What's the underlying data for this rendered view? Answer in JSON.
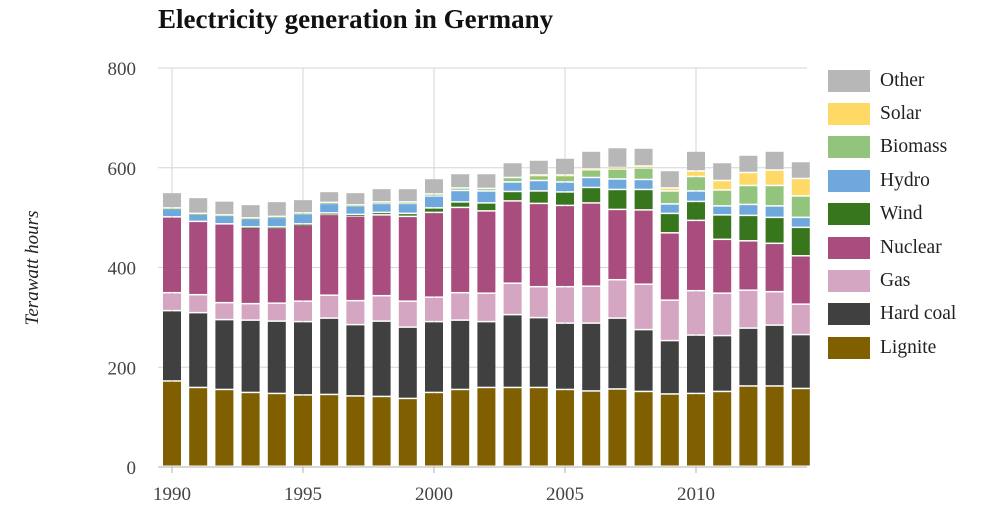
{
  "chart_data": {
    "type": "bar",
    "stacked": true,
    "title": "Electricity generation in Germany",
    "ylabel": "Terawatt hours",
    "ylim": [
      0,
      800
    ],
    "yticks": [
      0,
      200,
      400,
      600,
      800
    ],
    "xticks": [
      1990,
      1995,
      2000,
      2005,
      2010
    ],
    "grid": "vertical lines at labelled years, horizontal at y ticks",
    "legend_position": "right",
    "categories": [
      1990,
      1991,
      1992,
      1993,
      1994,
      1995,
      1996,
      1997,
      1998,
      1999,
      2000,
      2001,
      2002,
      2003,
      2004,
      2005,
      2006,
      2007,
      2008,
      2009,
      2010,
      2011,
      2012,
      2013,
      2014
    ],
    "series": [
      {
        "name": "Lignite",
        "color": "#7f5f00",
        "values": [
          171,
          158,
          154,
          148,
          146,
          143,
          144,
          141,
          140,
          136,
          148,
          154,
          158,
          158,
          158,
          154,
          151,
          155,
          150,
          145,
          146,
          150,
          161,
          161,
          156
        ]
      },
      {
        "name": "Hard coal",
        "color": "#404040",
        "values": [
          141,
          150,
          140,
          145,
          145,
          147,
          153,
          143,
          151,
          143,
          142,
          139,
          132,
          146,
          140,
          133,
          136,
          142,
          124,
          107,
          117,
          112,
          116,
          122,
          108
        ]
      },
      {
        "name": "Gas",
        "color": "#d5a6c1",
        "values": [
          36,
          36,
          34,
          33,
          36,
          41,
          46,
          48,
          51,
          52,
          49,
          55,
          57,
          63,
          62,
          73,
          74,
          77,
          91,
          81,
          89,
          85,
          76,
          67,
          61
        ]
      },
      {
        "name": "Nuclear",
        "color": "#a84d7e",
        "values": [
          152,
          147,
          158,
          153,
          151,
          153,
          162,
          170,
          162,
          170,
          170,
          171,
          165,
          165,
          167,
          163,
          167,
          141,
          149,
          135,
          141,
          108,
          99,
          97,
          97
        ]
      },
      {
        "name": "Wind",
        "color": "#38761d",
        "values": [
          0,
          0,
          0,
          1,
          2,
          2,
          3,
          3,
          5,
          6,
          9,
          11,
          16,
          19,
          25,
          27,
          31,
          40,
          41,
          39,
          38,
          49,
          51,
          52,
          57
        ]
      },
      {
        "name": "Hydro",
        "color": "#6fa8dc",
        "values": [
          17,
          15,
          17,
          17,
          19,
          20,
          19,
          17,
          18,
          20,
          24,
          23,
          24,
          19,
          21,
          20,
          20,
          21,
          20,
          19,
          21,
          18,
          22,
          23,
          20
        ]
      },
      {
        "name": "Biomass",
        "color": "#93c47d",
        "values": [
          1,
          1,
          1,
          1,
          2,
          2,
          2,
          2,
          3,
          3,
          4,
          5,
          5,
          9,
          10,
          13,
          15,
          20,
          23,
          26,
          29,
          32,
          38,
          41,
          43
        ]
      },
      {
        "name": "Solar",
        "color": "#ffd966",
        "values": [
          0,
          0,
          0,
          0,
          0,
          0,
          0,
          0,
          0,
          0,
          0,
          0,
          0,
          0,
          1,
          1,
          2,
          3,
          4,
          6,
          11,
          19,
          26,
          31,
          35
        ]
      },
      {
        "name": "Other",
        "color": "#b7b7b7",
        "values": [
          31,
          32,
          28,
          27,
          30,
          27,
          22,
          25,
          27,
          27,
          31,
          29,
          30,
          30,
          30,
          34,
          36,
          40,
          36,
          35,
          40,
          36,
          35,
          38,
          34
        ]
      }
    ]
  }
}
